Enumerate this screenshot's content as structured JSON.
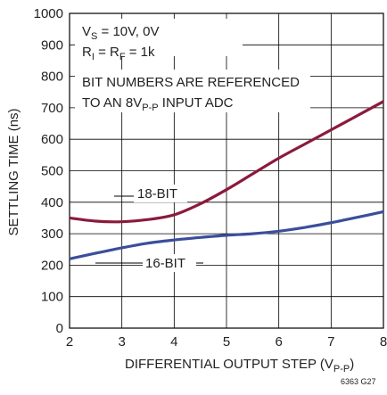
{
  "chart_data": {
    "type": "line",
    "title": "",
    "xlabel": "DIFFERENTIAL OUTPUT STEP (V",
    "xlabel_subscript": "P-P",
    "xlabel_close": ")",
    "ylabel": "SETTLING TIME (ns)",
    "xlim": [
      2,
      8
    ],
    "ylim": [
      0,
      1000
    ],
    "x_ticks": [
      "2",
      "3",
      "4",
      "5",
      "6",
      "7",
      "8"
    ],
    "y_ticks": [
      "0",
      "100",
      "200",
      "300",
      "400",
      "500",
      "600",
      "700",
      "800",
      "900",
      "1000"
    ],
    "grid": true,
    "series": [
      {
        "name": "18-BIT",
        "color": "#8b1a3c",
        "x": [
          2,
          2.5,
          3,
          3.5,
          4,
          4.5,
          5,
          5.5,
          6,
          6.5,
          7,
          7.5,
          8
        ],
        "y": [
          350,
          340,
          338,
          345,
          360,
          395,
          440,
          490,
          540,
          585,
          630,
          675,
          720
        ]
      },
      {
        "name": "16-BIT",
        "color": "#3b4e9c",
        "x": [
          2,
          2.5,
          3,
          3.5,
          4,
          4.5,
          5,
          5.5,
          6,
          6.5,
          7,
          7.5,
          8
        ],
        "y": [
          220,
          238,
          255,
          270,
          280,
          288,
          295,
          300,
          308,
          320,
          335,
          352,
          370
        ]
      }
    ],
    "annotations": {
      "line1_prefix": "V",
      "line1_sub": "S",
      "line1_rest": " = 10V, 0V",
      "line2_a": "R",
      "line2_a_sub": "I",
      "line2_mid": " = R",
      "line2_b_sub": "F",
      "line2_rest": " = 1k",
      "line3": "BIT NUMBERS ARE REFERENCED",
      "line4_prefix": "TO AN 8V",
      "line4_sub": "P-P",
      "line4_rest": " INPUT ADC"
    },
    "figure_code": "6363 G27"
  }
}
